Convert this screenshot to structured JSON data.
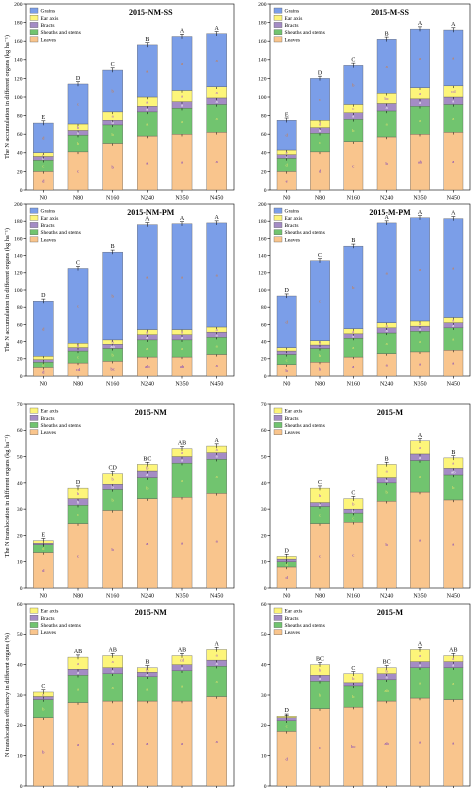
{
  "chart_data": [
    {
      "type": "bar",
      "stacked": true,
      "title": "2015-NM-SS",
      "ylabel": "The N accumulation in different organs (kg ha⁻¹)",
      "ylim": [
        0,
        200
      ],
      "yticks": [
        0,
        20,
        40,
        60,
        80,
        100,
        120,
        140,
        160,
        180,
        200
      ],
      "categories": [
        "N0",
        "N80",
        "N160",
        "N240",
        "N350",
        "N450"
      ],
      "legend": {
        "position": "top-left",
        "entries": [
          "Grains",
          "Ear axis",
          "Bracts",
          "Sheaths and stems",
          "Leaves"
        ]
      },
      "series": [
        {
          "name": "Leaves",
          "values": [
            20,
            41,
            50,
            58,
            60,
            62
          ],
          "labels": [
            "d",
            "c",
            "b",
            "a",
            "a",
            "a"
          ]
        },
        {
          "name": "Sheaths and stems",
          "values": [
            12,
            18,
            20,
            26,
            28,
            30
          ],
          "labels": [
            "c",
            "b",
            "b",
            "a",
            "a",
            "a"
          ]
        },
        {
          "name": "Bracts",
          "values": [
            4,
            5,
            5,
            6,
            7,
            7
          ],
          "labels": [
            "c",
            "b",
            "b",
            "a",
            "a",
            "a"
          ]
        },
        {
          "name": "Ear axis",
          "values": [
            4,
            7,
            9,
            10,
            12,
            12
          ],
          "labels": [
            "c",
            "b",
            "a",
            "a",
            "a",
            "a"
          ]
        },
        {
          "name": "Grains",
          "values": [
            32,
            43,
            45,
            56,
            58,
            57
          ],
          "labels": [
            "d",
            "c",
            "b",
            "a",
            "a",
            "a"
          ]
        }
      ],
      "top_letters": [
        "E",
        "D",
        "C",
        "B",
        "A",
        "A"
      ]
    },
    {
      "type": "bar",
      "stacked": true,
      "title": "2015-M-SS",
      "ylabel": "",
      "ylim": [
        0,
        200
      ],
      "yticks": [
        0,
        20,
        40,
        60,
        80,
        100,
        120,
        140,
        160,
        180,
        200
      ],
      "categories": [
        "N0",
        "N80",
        "N160",
        "N240",
        "N350",
        "N450"
      ],
      "legend": {
        "position": "top-left",
        "entries": [
          "Grains",
          "Ear axis",
          "Bracts",
          "Sheaths and stems",
          "Leaves"
        ]
      },
      "series": [
        {
          "name": "Leaves",
          "values": [
            20,
            41,
            52,
            57,
            60,
            62
          ],
          "labels": [
            "e",
            "d",
            "c",
            "b",
            "ab",
            "a"
          ]
        },
        {
          "name": "Sheaths and stems",
          "values": [
            14,
            20,
            24,
            28,
            30,
            30
          ],
          "labels": [
            "d",
            "c",
            "b",
            "a",
            "a",
            "a"
          ]
        },
        {
          "name": "Bracts",
          "values": [
            4,
            6,
            7,
            8,
            8,
            8
          ],
          "labels": [
            "c",
            "b",
            "a",
            "a",
            "a",
            "a"
          ]
        },
        {
          "name": "Ear axis",
          "values": [
            5,
            8,
            9,
            11,
            12,
            12
          ],
          "labels": [
            "e",
            "d",
            "c",
            "bc",
            "a",
            "cd"
          ]
        },
        {
          "name": "Grains",
          "values": [
            32,
            45,
            42,
            58,
            63,
            60
          ],
          "labels": [
            "d",
            "c",
            "b",
            "a",
            "a",
            "a"
          ]
        }
      ],
      "top_letters": [
        "E",
        "D",
        "C",
        "B",
        "A",
        "A"
      ]
    },
    {
      "type": "bar",
      "stacked": true,
      "title": "2015-NM-PM",
      "ylabel": "The N accumulation in different organs (kg ha⁻¹)",
      "ylim": [
        0,
        200
      ],
      "yticks": [
        0,
        20,
        40,
        60,
        80,
        100,
        120,
        140,
        160,
        180,
        200
      ],
      "categories": [
        "N0",
        "N80",
        "N160",
        "N240",
        "N350",
        "N450"
      ],
      "legend": {
        "position": "top-left",
        "entries": [
          "Grains",
          "Ear axis",
          "Bracts",
          "Sheaths and stems",
          "Leaves"
        ]
      },
      "series": [
        {
          "name": "Leaves",
          "values": [
            10,
            15,
            17,
            22,
            22,
            25
          ],
          "labels": [
            "d",
            "cd",
            "bc",
            "ab",
            "ab",
            "a"
          ]
        },
        {
          "name": "Sheaths and stems",
          "values": [
            6,
            14,
            15,
            20,
            20,
            20
          ],
          "labels": [
            "d",
            "c",
            "b",
            "a",
            "a",
            "a"
          ]
        },
        {
          "name": "Bracts",
          "values": [
            3,
            4,
            5,
            6,
            6,
            6
          ],
          "labels": [
            "c",
            "b",
            "ab",
            "a",
            "a",
            "a"
          ]
        },
        {
          "name": "Ear axis",
          "values": [
            4,
            5,
            5,
            6,
            6,
            6
          ],
          "labels": [
            "c",
            "b",
            "b",
            "a",
            "a",
            "a"
          ]
        },
        {
          "name": "Grains",
          "values": [
            64,
            87,
            102,
            122,
            123,
            121
          ],
          "labels": [
            "d",
            "c",
            "b",
            "a",
            "a",
            "a"
          ]
        }
      ],
      "top_letters": [
        "D",
        "C",
        "B",
        "A",
        "A",
        "A"
      ]
    },
    {
      "type": "bar",
      "stacked": true,
      "title": "2015-M-PM",
      "ylabel": "",
      "ylim": [
        0,
        200
      ],
      "yticks": [
        0,
        20,
        40,
        60,
        80,
        100,
        120,
        140,
        160,
        180,
        200
      ],
      "categories": [
        "N0",
        "N80",
        "N160",
        "N240",
        "N350",
        "N450"
      ],
      "legend": {
        "position": "top-left",
        "entries": [
          "Grains",
          "Ear axis",
          "Bracts",
          "Sheaths and stems",
          "Leaves"
        ]
      },
      "series": [
        {
          "name": "Leaves",
          "values": [
            13,
            16,
            22,
            26,
            28,
            30
          ],
          "labels": [
            "b",
            "b",
            "a",
            "a",
            "a",
            "a"
          ]
        },
        {
          "name": "Sheaths and stems",
          "values": [
            12,
            16,
            22,
            24,
            24,
            26
          ],
          "labels": [
            "c",
            "b",
            "a",
            "a",
            "a",
            "a"
          ]
        },
        {
          "name": "Bracts",
          "values": [
            4,
            4,
            5,
            6,
            6,
            6
          ],
          "labels": [
            "b",
            "ab",
            "a",
            "a",
            "a",
            "a"
          ]
        },
        {
          "name": "Ear axis",
          "values": [
            4,
            5,
            6,
            6,
            6,
            6
          ],
          "labels": [
            "c",
            "b",
            "a",
            "a",
            "a",
            "a"
          ]
        },
        {
          "name": "Grains",
          "values": [
            60,
            93,
            96,
            116,
            120,
            115
          ],
          "labels": [
            "d",
            "c",
            "b",
            "a",
            "a",
            "a"
          ]
        }
      ],
      "top_letters": [
        "D",
        "C",
        "B",
        "A",
        "A",
        "A"
      ]
    },
    {
      "type": "bar",
      "stacked": true,
      "title": "2015-NM",
      "ylabel": "The N translocation in different organs (kg ha⁻¹)",
      "ylim": [
        0,
        70
      ],
      "yticks": [
        0,
        10,
        20,
        30,
        40,
        50,
        60,
        70
      ],
      "categories": [
        "N0",
        "N80",
        "N160",
        "N240",
        "N350",
        "N450"
      ],
      "legend": {
        "position": "top-left",
        "entries": [
          "Ear axis",
          "Bracts",
          "Sheaths and stems",
          "Leaves"
        ]
      },
      "series": [
        {
          "name": "Leaves",
          "values": [
            13.5,
            24.5,
            29.5,
            34,
            34.5,
            36
          ],
          "labels": [
            "d",
            "c",
            "b",
            "a",
            "a",
            "a"
          ]
        },
        {
          "name": "Sheaths and stems",
          "values": [
            3,
            7,
            8,
            8,
            13,
            13
          ],
          "labels": [
            "d",
            "c",
            "b",
            "b",
            "a",
            "a"
          ]
        },
        {
          "name": "Bracts",
          "values": [
            0.5,
            2.5,
            2,
            2.5,
            2.5,
            2.5
          ],
          "labels": [
            "c",
            "b",
            "b",
            "a",
            "a",
            "a"
          ]
        },
        {
          "name": "Ear axis",
          "values": [
            1,
            4,
            4,
            2.5,
            3,
            2.5
          ],
          "labels": [
            "c",
            "b",
            "b",
            "b",
            "a",
            "a"
          ]
        }
      ],
      "top_letters": [
        "E",
        "D",
        "CD",
        "BC",
        "AB",
        "A"
      ]
    },
    {
      "type": "bar",
      "stacked": true,
      "title": "2015-M",
      "ylabel": "",
      "ylim": [
        0,
        70
      ],
      "yticks": [
        0,
        10,
        20,
        30,
        40,
        50,
        60,
        70
      ],
      "categories": [
        "N0",
        "N80",
        "N160",
        "N240",
        "N350",
        "N450"
      ],
      "legend": {
        "position": "top-left",
        "entries": [
          "Ear axis",
          "Bracts",
          "Sheaths and stems",
          "Leaves"
        ]
      },
      "series": [
        {
          "name": "Leaves",
          "values": [
            8,
            24.5,
            25,
            33,
            36.5,
            33.5
          ],
          "labels": [
            "d",
            "c",
            "c",
            "b",
            "a",
            "a"
          ]
        },
        {
          "name": "Sheaths and stems",
          "values": [
            2,
            6.5,
            3.5,
            7,
            12,
            9.5
          ],
          "labels": [
            "d",
            "c",
            "c",
            "b",
            "a",
            "b"
          ]
        },
        {
          "name": "Bracts",
          "values": [
            1,
            1.5,
            1.5,
            2,
            2.5,
            2.5
          ],
          "labels": [
            "c",
            "b",
            "b",
            "b",
            "a",
            "ab"
          ]
        },
        {
          "name": "Ear axis",
          "values": [
            1,
            5.5,
            4,
            5,
            5,
            4
          ],
          "labels": [
            "c",
            "b",
            "b",
            "a",
            "a",
            "a"
          ]
        }
      ],
      "top_letters": [
        "D",
        "C",
        "C",
        "B",
        "A",
        "B"
      ]
    },
    {
      "type": "bar",
      "stacked": true,
      "title": "2015-NM",
      "ylabel": "N translocation efficiency in different organs (%)",
      "ylim": [
        0,
        60
      ],
      "yticks": [
        0,
        10,
        20,
        30,
        40,
        50,
        60
      ],
      "categories": [
        "N0",
        "N80",
        "N160",
        "N240",
        "N350",
        "N450"
      ],
      "legend": {
        "position": "top-left",
        "entries": [
          "Ear axis",
          "Bracts",
          "Sheaths and stems",
          "Leaves"
        ]
      },
      "series": [
        {
          "name": "Leaves",
          "values": [
            22.5,
            27.5,
            28,
            28,
            28,
            29.5
          ],
          "labels": [
            "b",
            "a",
            "a",
            "a",
            "a",
            "a"
          ]
        },
        {
          "name": "Sheaths and stems",
          "values": [
            6,
            9,
            9,
            8,
            10,
            10
          ],
          "labels": [
            "b",
            "a",
            "a",
            "a",
            "a",
            "a"
          ]
        },
        {
          "name": "Bracts",
          "values": [
            1,
            2,
            2,
            1.5,
            2,
            2
          ],
          "labels": [
            "b",
            "a",
            "a",
            "a",
            "a",
            "a"
          ]
        },
        {
          "name": "Ear axis",
          "values": [
            1.5,
            4,
            4,
            1.5,
            3,
            3.5
          ],
          "labels": [
            "c",
            "a",
            "a",
            "b",
            "cd",
            "a"
          ]
        }
      ],
      "top_letters": [
        "C",
        "AB",
        "AB",
        "B",
        "AB",
        "A"
      ]
    },
    {
      "type": "bar",
      "stacked": true,
      "title": "2015-M",
      "ylabel": "",
      "ylim": [
        0,
        60
      ],
      "yticks": [
        0,
        10,
        20,
        30,
        40,
        50,
        60
      ],
      "categories": [
        "N0",
        "N80",
        "N160",
        "N240",
        "N350",
        "N450"
      ],
      "legend": {
        "position": "top-left",
        "entries": [
          "Ear axis",
          "Bracts",
          "Sheaths and stems",
          "Leaves"
        ]
      },
      "series": [
        {
          "name": "Leaves",
          "values": [
            18,
            25.5,
            26,
            28,
            29,
            28.5
          ],
          "labels": [
            "d",
            "c",
            "bc",
            "ab",
            "a",
            "a"
          ]
        },
        {
          "name": "Sheaths and stems",
          "values": [
            3.5,
            9,
            7,
            7,
            10,
            10.5
          ],
          "labels": [
            "c",
            "b",
            "b",
            "ab",
            "a",
            "a"
          ]
        },
        {
          "name": "Bracts",
          "values": [
            1,
            2,
            1,
            2,
            2,
            2
          ],
          "labels": [
            "b",
            "a",
            "a",
            "a",
            "a",
            "a"
          ]
        },
        {
          "name": "Ear axis",
          "values": [
            0.5,
            3.5,
            3,
            2,
            4,
            2
          ],
          "labels": [
            "b",
            "b",
            "b",
            "b",
            "a",
            "a"
          ]
        }
      ],
      "top_letters": [
        "D",
        "BC",
        "C",
        "BC",
        "A",
        "AB"
      ]
    }
  ],
  "colors": {
    "Grains": "#7b9ee8",
    "Ear axis": "#fdf57a",
    "Bracts": "#a48cc5",
    "Sheaths and stems": "#71c46f",
    "Leaves": "#f9c58d"
  },
  "label_colors": {
    "Grains": "#d9762e",
    "Ear axis": "#9a4bd0",
    "Bracts": "#ffffff",
    "Sheaths and stems": "#e8e36a",
    "Leaves": "#6a2fbf"
  }
}
